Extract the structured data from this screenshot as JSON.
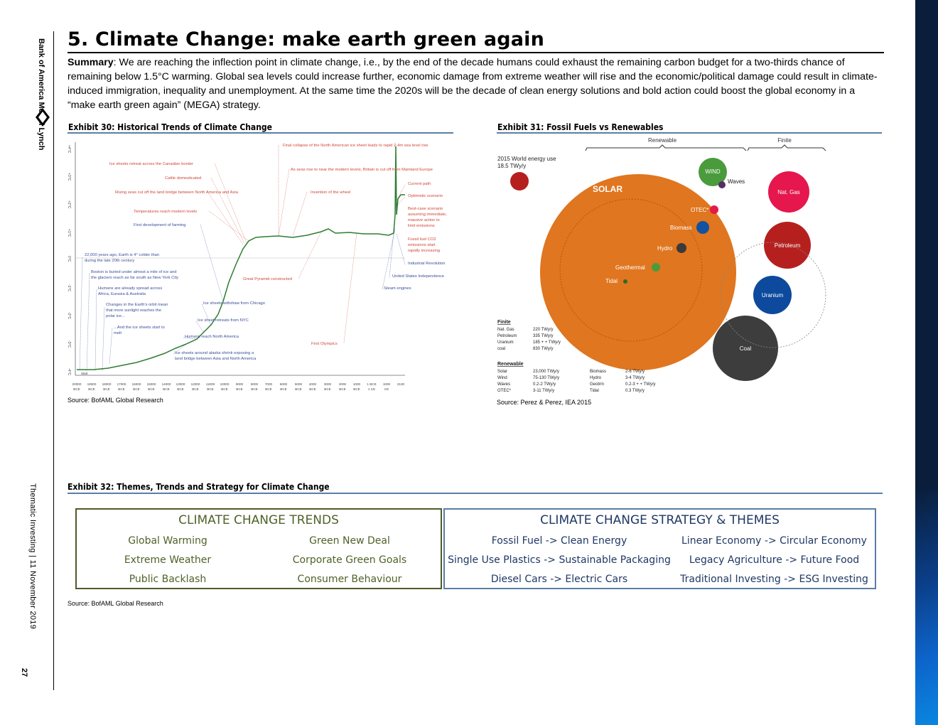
{
  "logo": {
    "text": "Bank of America Merrill Lynch"
  },
  "side": {
    "label": "Thematic Investing | 11 November 2019",
    "page": "27"
  },
  "title": "5. Climate Change: make earth green again",
  "summary": {
    "label": "Summary",
    "text": ": We are reaching the inflection point in climate change, i.e., by the end of the decade humans could exhaust the remaining carbon budget for a two-thirds chance of remaining below 1.5°C warming. Global sea levels could increase further, economic damage from extreme weather will rise and the economic/political damage could result in climate-induced immigration, inequality and unemployment. At the same time the 2020s will be the decade of clean energy solutions and bold action could boost the global economy in a “make earth green again” (MEGA) strategy."
  },
  "exhibit30": {
    "title": "Exhibit 30: Historical Trends of Climate Change",
    "source": "Source: BofAML Global Research",
    "annotations": [
      "Ice sheets retreat across the Canadian border",
      "Cattle domesticated",
      "Rising seas cut off the land bridge between North America and Asia",
      "Temperatures reach modern levels",
      "First development of farming",
      "22,000 years ago, Earth is 4° colder than during the late 20th century",
      "Boston is buried under almost a mile of ice and the glaciers reach as far south as New York City",
      "Humans are already spread across Africa, Eurasia & Australia",
      "Changes in the Earth's orbit mean that more sunlight reaches the polar ice...",
      "...And the ice sheets start to melt",
      "Ice sheets withdraw from Chicago",
      "Ice sheet retreats from NYC",
      "Humans reach North America",
      "Ice sheets around alaska shrink exposing a land bridge between Asia and North America",
      "Final collapse of the North American ice sheet leads to rapid 2-4m sea level rise",
      "As seas rise to near the modern levels, Britain is cut off from Mainland Europe",
      "Invention of the wheel",
      "Great Pyramid constructed",
      "First Olympics",
      "Current path",
      "Optimistic scenario",
      "Best-case scenario assuming immediate, massive action to limit emissions",
      "Fossil fuel CO2 emissions start rapidly increasing",
      "Industrial Revolution",
      "United States Independence",
      "Steam engines",
      "Start"
    ],
    "y_ticks": [
      "-4°C",
      "-3°C",
      "-2°C",
      "-1°C",
      "0°C",
      "+1°C",
      "+2°C",
      "+3°C",
      "+4°C"
    ],
    "x_ticks": [
      "20000 BCE",
      "19000 BCE",
      "18000 BCE",
      "17000 BCE",
      "16000 BCE",
      "15000 BCE",
      "14000 BCE",
      "13000 BCE",
      "12000 BCE",
      "11000 BCE",
      "10000 BCE",
      "9000 BCE",
      "8000 BCE",
      "7000 BCE",
      "6000 BCE",
      "5000 BCE",
      "4000 BCE",
      "3000 BCE",
      "2000 BCE",
      "1000 BCE",
      "1 BCE 1 CE",
      "1000 CE",
      "2100"
    ]
  },
  "exhibit31": {
    "title": "Exhibit 31: Fossil Fuels vs Renewables",
    "source": "Source: Perez & Perez, IEA 2015",
    "renewable_label": "Renewable",
    "finite_label": "Finite",
    "world_use": "2015 World energy use 18.5 TWy/y",
    "bubbles": [
      "SOLAR",
      "WIND",
      "Waves",
      "OTEC*",
      "Biomass",
      "Hydro",
      "Geothermal",
      "Tidal",
      "Nat. Gas",
      "Petroleum",
      "Uranium",
      "Coal"
    ],
    "finite_head": "Finite",
    "finite_rows": [
      [
        "Nat. Gas",
        "220 TWy/y"
      ],
      [
        "Petroleum",
        "335 TWy/y"
      ],
      [
        "Uranium",
        "185 + + TWy/y"
      ],
      [
        "coal",
        "830 TWy/y"
      ]
    ],
    "renew_head": "Renewable",
    "renew_rows": [
      [
        "Solar",
        "23,000 TWy/y",
        "Biomass",
        "2-6 TWy/y"
      ],
      [
        "Wind",
        "75-130 TWy/y",
        "Hydro",
        "3-4 TWy/y"
      ],
      [
        "Waves",
        "0.2-2 TWy/y",
        "Geotrm",
        "0.2-3 + + TWy/y"
      ],
      [
        "OTEC*",
        "3-11 TWy/y",
        "Tidal",
        "0.3 TWy/y"
      ]
    ]
  },
  "exhibit32": {
    "title": "Exhibit 32: Themes, Trends and Strategy for Climate Change",
    "source": "Source: BofAML Global Research",
    "trends_head": "CLIMATE CHANGE TRENDS",
    "trends": [
      "Global Warming",
      "Green New Deal",
      "Extreme Weather",
      "Corporate Green Goals",
      "Public Backlash",
      "Consumer Behaviour"
    ],
    "strategy_head": "CLIMATE CHANGE STRATEGY & THEMES",
    "strategy": [
      "Fossil Fuel -> Clean Energy",
      "Linear Economy -> Circular Economy",
      "Single Use Plastics -> Sustainable Packaging",
      "Legacy Agriculture -> Future Food",
      "Diesel Cars -> Electric Cars",
      "Traditional Investing -> ESG Investing"
    ]
  }
}
